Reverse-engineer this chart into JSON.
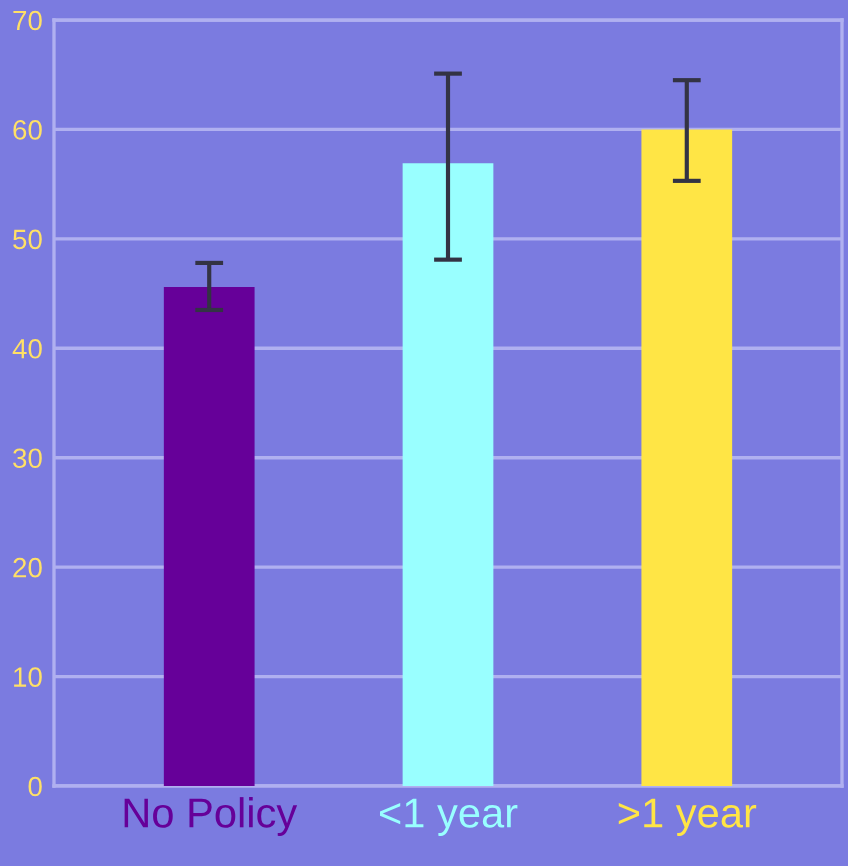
{
  "chart_data": {
    "type": "bar",
    "categories": [
      "No Policy",
      "<1 year",
      ">1 year"
    ],
    "values": [
      45.6,
      56.9,
      60.0
    ],
    "colors": [
      "#660099",
      "#99ffff",
      "#ffe545"
    ],
    "errors": [
      [
        43.5,
        47.8
      ],
      [
        48.1,
        65.1
      ],
      [
        55.3,
        64.5
      ]
    ],
    "ylim": [
      0,
      70
    ],
    "yticks": [
      0,
      10,
      20,
      30,
      40,
      50,
      60,
      70
    ],
    "grid": "y"
  }
}
